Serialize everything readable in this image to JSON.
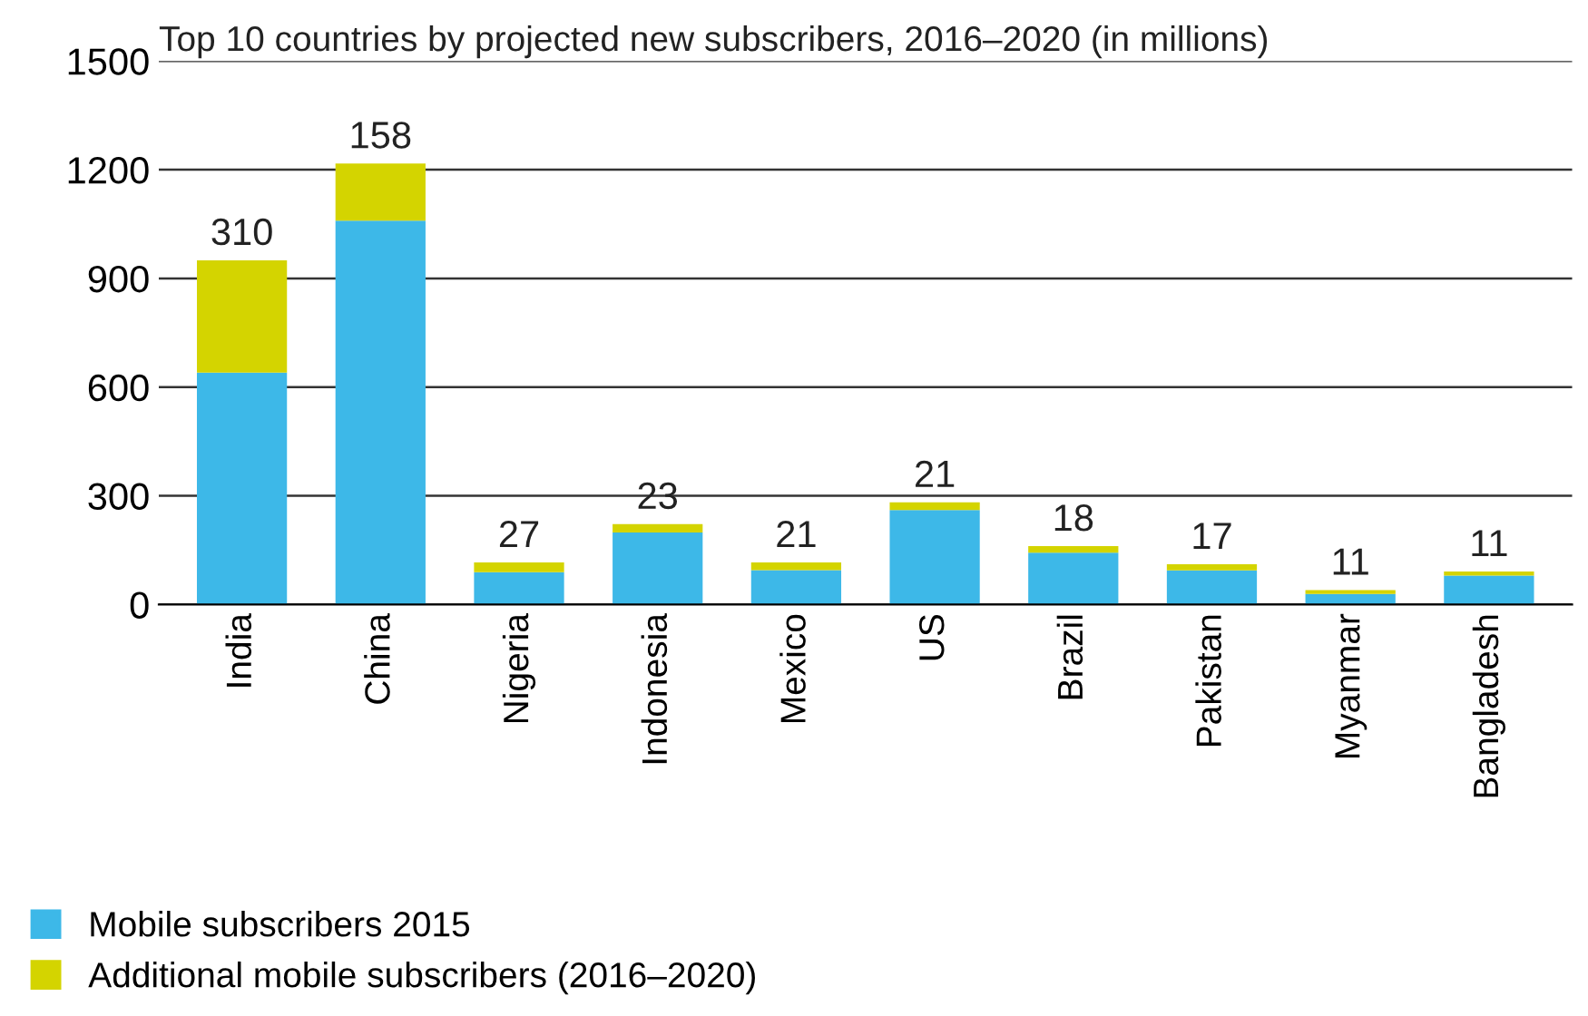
{
  "chart_data": {
    "type": "bar",
    "title": "Top 10 countries by projected new subscribers, 2016–2020 (in millions)",
    "categories": [
      "India",
      "China",
      "Nigeria",
      "Indonesia",
      "Mexico",
      "US",
      "Brazil",
      "Pakistan",
      "Myanmar",
      "Bangladesh"
    ],
    "stacked": true,
    "series": [
      {
        "name": "Mobile subscribers 2015",
        "color": "#3db8e8",
        "values": [
          640,
          1059,
          89,
          199,
          95,
          261,
          143,
          94,
          29,
          80
        ]
      },
      {
        "name": "Additional mobile subscribers (2016–2020)",
        "color": "#d4d400",
        "values": [
          310,
          158,
          27,
          23,
          21,
          21,
          18,
          17,
          11,
          11
        ],
        "value_labels": [
          "310",
          "158",
          "27",
          "23",
          "21",
          "21",
          "18",
          "17",
          "11",
          "11"
        ]
      }
    ],
    "ylim": [
      0,
      1500
    ],
    "yticks": [
      0,
      300,
      600,
      900,
      1200,
      1500
    ],
    "grid": "y",
    "legend": "bottom"
  }
}
